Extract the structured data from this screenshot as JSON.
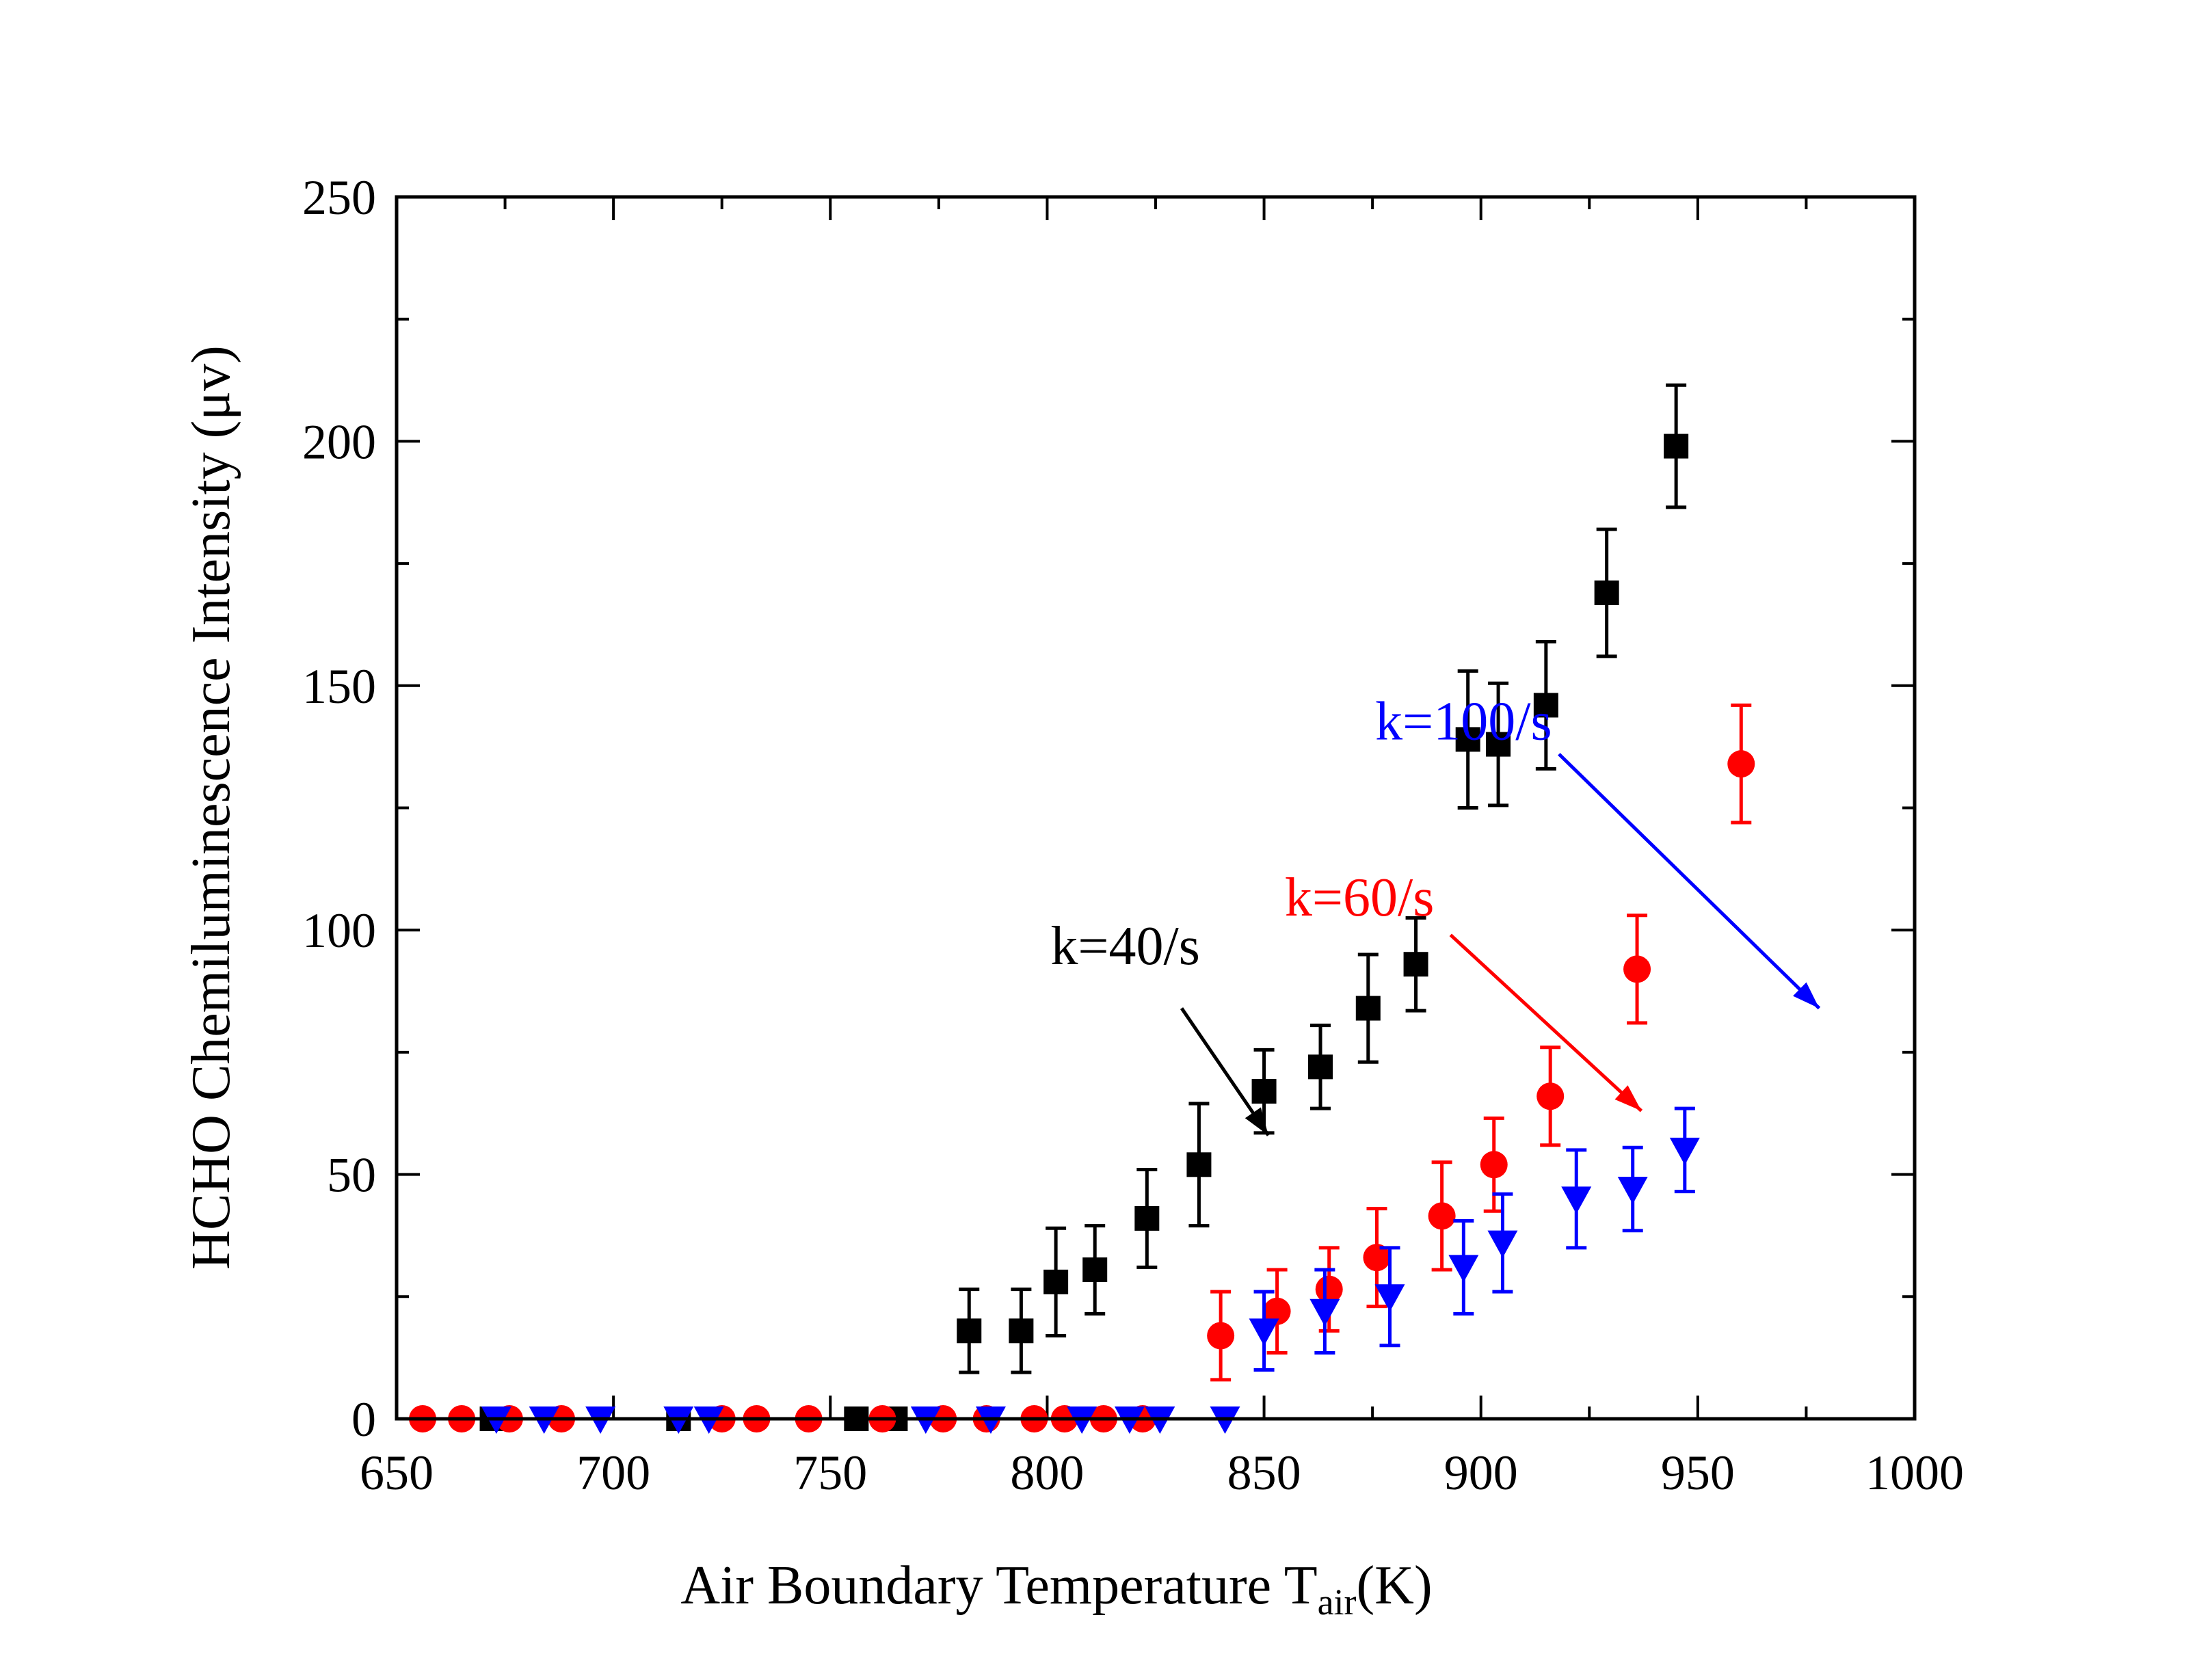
{
  "chart_data": {
    "type": "scatter",
    "xlabel": "Air Boundary Temperature T",
    "xlabel_sub": "air",
    "xlabel_unit": "(K)",
    "ylabel": "HCHO Chemiluminescence Intensity (μv)",
    "xlim": [
      650,
      1000
    ],
    "ylim": [
      0,
      250
    ],
    "x_ticks": [
      650,
      700,
      750,
      800,
      850,
      900,
      950,
      1000
    ],
    "y_ticks": [
      0,
      50,
      100,
      150,
      200,
      250
    ],
    "grid": false,
    "legend": "none",
    "series": [
      {
        "color": "#000000",
        "marker": "square",
        "points": [
          {
            "x": 672,
            "y": 0,
            "err": 0
          },
          {
            "x": 715,
            "y": 0,
            "err": 0
          },
          {
            "x": 756,
            "y": 0,
            "err": 0
          },
          {
            "x": 765,
            "y": 0,
            "err": 0
          },
          {
            "x": 782,
            "y": 18,
            "err": 8.5
          },
          {
            "x": 794,
            "y": 18,
            "err": 8.5
          },
          {
            "x": 802,
            "y": 28,
            "err": 11
          },
          {
            "x": 811,
            "y": 30.5,
            "err": 9
          },
          {
            "x": 823,
            "y": 41,
            "err": 10
          },
          {
            "x": 835,
            "y": 52,
            "err": 12.5
          },
          {
            "x": 850,
            "y": 67,
            "err": 8.5
          },
          {
            "x": 863,
            "y": 72,
            "err": 8.5
          },
          {
            "x": 874,
            "y": 84,
            "err": 11
          },
          {
            "x": 885,
            "y": 93,
            "err": 9.5
          },
          {
            "x": 897,
            "y": 139,
            "err": 14
          },
          {
            "x": 904,
            "y": 138,
            "err": 12.5
          },
          {
            "x": 915,
            "y": 146,
            "err": 13
          },
          {
            "x": 929,
            "y": 169,
            "err": 13
          },
          {
            "x": 945,
            "y": 199,
            "err": 12.5
          }
        ]
      },
      {
        "color": "#ff0000",
        "marker": "circle",
        "points": [
          {
            "x": 656,
            "y": 0,
            "err": 0
          },
          {
            "x": 665,
            "y": 0,
            "err": 0
          },
          {
            "x": 676,
            "y": 0,
            "err": 0
          },
          {
            "x": 688,
            "y": 0,
            "err": 0
          },
          {
            "x": 725,
            "y": 0,
            "err": 0
          },
          {
            "x": 733,
            "y": 0,
            "err": 0
          },
          {
            "x": 745,
            "y": 0,
            "err": 0
          },
          {
            "x": 762,
            "y": 0,
            "err": 0
          },
          {
            "x": 776,
            "y": 0,
            "err": 0
          },
          {
            "x": 786,
            "y": 0,
            "err": 0
          },
          {
            "x": 797,
            "y": 0,
            "err": 0
          },
          {
            "x": 804,
            "y": 0,
            "err": 0
          },
          {
            "x": 813,
            "y": 0,
            "err": 0
          },
          {
            "x": 822,
            "y": 0,
            "err": 0
          },
          {
            "x": 840,
            "y": 17,
            "err": 9
          },
          {
            "x": 853,
            "y": 22,
            "err": 8.5
          },
          {
            "x": 865,
            "y": 26.5,
            "err": 8.5
          },
          {
            "x": 876,
            "y": 33,
            "err": 10
          },
          {
            "x": 891,
            "y": 41.5,
            "err": 11
          },
          {
            "x": 903,
            "y": 52,
            "err": 9.5
          },
          {
            "x": 916,
            "y": 66,
            "err": 10
          },
          {
            "x": 936,
            "y": 92,
            "err": 11
          },
          {
            "x": 960,
            "y": 134,
            "err": 12
          }
        ]
      },
      {
        "color": "#0000ff",
        "marker": "triangle-down",
        "points": [
          {
            "x": 673,
            "y": 0,
            "err": 0
          },
          {
            "x": 684,
            "y": 0,
            "err": 0
          },
          {
            "x": 697,
            "y": 0,
            "err": 0
          },
          {
            "x": 715,
            "y": 0,
            "err": 0
          },
          {
            "x": 722,
            "y": 0,
            "err": 0
          },
          {
            "x": 772,
            "y": 0,
            "err": 0
          },
          {
            "x": 787,
            "y": 0,
            "err": 0
          },
          {
            "x": 808,
            "y": 0,
            "err": 0
          },
          {
            "x": 819,
            "y": 0,
            "err": 0
          },
          {
            "x": 826,
            "y": 0,
            "err": 0
          },
          {
            "x": 841,
            "y": 0,
            "err": 0
          },
          {
            "x": 850,
            "y": 18,
            "err": 8
          },
          {
            "x": 864,
            "y": 22,
            "err": 8.5
          },
          {
            "x": 879,
            "y": 25,
            "err": 10
          },
          {
            "x": 896,
            "y": 31,
            "err": 9.5
          },
          {
            "x": 905,
            "y": 36,
            "err": 10
          },
          {
            "x": 922,
            "y": 45,
            "err": 10
          },
          {
            "x": 935,
            "y": 47,
            "err": 8.5
          },
          {
            "x": 947,
            "y": 55,
            "err": 8.5
          }
        ]
      }
    ],
    "annotations": [
      {
        "text": "k=40/s",
        "color": "#000000",
        "text_x": 818,
        "text_y": 93,
        "arrow_from": [
          831,
          84
        ],
        "arrow_to": [
          851,
          58
        ]
      },
      {
        "text": "k=60/s",
        "color": "#ff0000",
        "text_x": 872,
        "text_y": 103,
        "arrow_from": [
          893,
          99
        ],
        "arrow_to": [
          937,
          63
        ]
      },
      {
        "text": "k=100/s",
        "color": "#0000ff",
        "text_x": 896,
        "text_y": 139,
        "arrow_from": [
          918,
          136
        ],
        "arrow_to": [
          978,
          84
        ]
      }
    ]
  }
}
